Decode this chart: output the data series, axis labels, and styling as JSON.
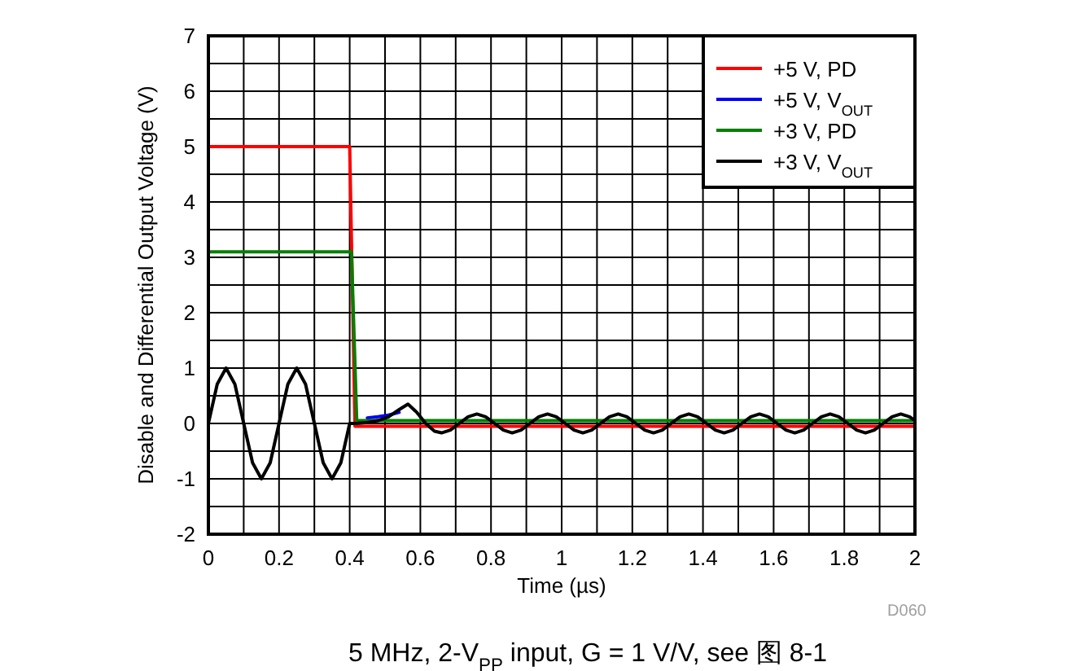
{
  "chart_data": {
    "type": "line",
    "xlabel": "Time (µs)",
    "ylabel": "Disable and Differential Output Voltage (V)",
    "xlim": [
      0,
      2
    ],
    "ylim": [
      -2,
      7
    ],
    "xticks": [
      0,
      {
        "value": 0.1,
        "label": null
      },
      {
        "value": 0.2,
        "label": "0.2"
      },
      {
        "value": 0.3,
        "label": null
      },
      {
        "value": 0.4,
        "label": "0.4"
      },
      {
        "value": 0.5,
        "label": null
      },
      {
        "value": 0.6,
        "label": "0.6"
      },
      {
        "value": 0.7,
        "label": null
      },
      {
        "value": 0.8,
        "label": "0.8"
      },
      {
        "value": 0.9,
        "label": null
      },
      1,
      {
        "value": 1.1,
        "label": null
      },
      {
        "value": 1.2,
        "label": "1.2"
      },
      {
        "value": 1.3,
        "label": null
      },
      {
        "value": 1.4,
        "label": "1.4"
      },
      {
        "value": 1.5,
        "label": null
      },
      {
        "value": 1.6,
        "label": "1.6"
      },
      {
        "value": 1.7,
        "label": null
      },
      {
        "value": 1.8,
        "label": "1.8"
      },
      {
        "value": 1.9,
        "label": null
      },
      2
    ],
    "yticks": [
      -2,
      {
        "value": -1.5,
        "label": null
      },
      -1,
      {
        "value": -0.5,
        "label": null
      },
      0,
      {
        "value": 0.5,
        "label": null
      },
      1,
      {
        "value": 1.5,
        "label": null
      },
      2,
      {
        "value": 2.5,
        "label": null
      },
      3,
      {
        "value": 3.5,
        "label": null
      },
      4,
      {
        "value": 4.5,
        "label": null
      },
      5,
      {
        "value": 5.5,
        "label": null
      },
      6,
      {
        "value": 6.5,
        "label": null
      },
      7
    ],
    "grid": true,
    "legend": "top right",
    "marker": "none",
    "line_style": "solid",
    "x": [
      0,
      0.025,
      0.05,
      0.075,
      0.1,
      0.125,
      0.15,
      0.175,
      0.2,
      0.225,
      0.25,
      0.275,
      0.3,
      0.325,
      0.35,
      0.375,
      0.4,
      0.42,
      0.45,
      0.48,
      0.51,
      0.54,
      0.565,
      0.59,
      0.615,
      0.64,
      0.66,
      0.685,
      0.71,
      0.735,
      0.76,
      0.785,
      0.81,
      0.835,
      0.86,
      0.885,
      0.91,
      0.935,
      0.96,
      0.985,
      1.01,
      1.035,
      1.06,
      1.085,
      1.11,
      1.135,
      1.16,
      1.185,
      1.21,
      1.235,
      1.26,
      1.285,
      1.31,
      1.335,
      1.36,
      1.385,
      1.41,
      1.435,
      1.46,
      1.485,
      1.51,
      1.535,
      1.56,
      1.585,
      1.61,
      1.635,
      1.66,
      1.685,
      1.71,
      1.735,
      1.76,
      1.785,
      1.81,
      1.835,
      1.86,
      1.885,
      1.91,
      1.935,
      1.96,
      1.985,
      2
    ],
    "series": [
      {
        "name": "+5 V, PD",
        "color": "#ff0000",
        "x": [
          0,
          0.4,
          0.415,
          2
        ],
        "values": [
          5,
          5,
          -0.05,
          -0.05
        ]
      },
      {
        "name": "+5 V, V$_{OUT}$",
        "color": "#0000ff",
        "x": [
          0.45,
          0.48,
          0.51,
          0.54
        ],
        "values": [
          0.1,
          0.12,
          0.15,
          0.2
        ]
      },
      {
        "name": "+3 V, PD",
        "color": "#008000",
        "x": [
          0,
          0.405,
          0.42,
          2
        ],
        "values": [
          3.1,
          3.1,
          0.05,
          0.05
        ]
      },
      {
        "name": "+3 V, V$_{OUT}$",
        "color": "#000000",
        "values": [
          0,
          0.71,
          1,
          0.71,
          0,
          -0.71,
          -1,
          -0.71,
          0,
          0.71,
          1,
          0.71,
          0,
          -0.71,
          -1,
          -0.71,
          0,
          0,
          0.02,
          0.05,
          0.12,
          0.25,
          0.35,
          0.2,
          0,
          -0.14,
          -0.17,
          -0.12,
          0,
          0.12,
          0.17,
          0.12,
          0,
          -0.12,
          -0.17,
          -0.12,
          0,
          0.12,
          0.17,
          0.12,
          0,
          -0.12,
          -0.17,
          -0.12,
          0,
          0.12,
          0.17,
          0.12,
          0,
          -0.12,
          -0.17,
          -0.12,
          0,
          0.12,
          0.17,
          0.12,
          0,
          -0.12,
          -0.17,
          -0.12,
          0,
          0.12,
          0.17,
          0.12,
          0,
          -0.12,
          -0.17,
          -0.12,
          0,
          0.12,
          0.17,
          0.12,
          0,
          -0.12,
          -0.17,
          -0.12,
          0,
          0.12,
          0.17,
          0.12,
          0.05
        ]
      }
    ],
    "annotations": [
      "D060",
      "5 MHz, 2-V$_{PP}$ input, G = 1 V/V, see 图 8-1"
    ]
  }
}
